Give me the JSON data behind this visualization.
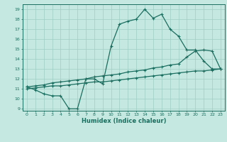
{
  "title": "",
  "xlabel": "Humidex (Indice chaleur)",
  "ylabel": "",
  "xlim": [
    -0.5,
    23.5
  ],
  "ylim": [
    8.8,
    19.5
  ],
  "yticks": [
    9,
    10,
    11,
    12,
    13,
    14,
    15,
    16,
    17,
    18,
    19
  ],
  "xticks": [
    0,
    1,
    2,
    3,
    4,
    5,
    6,
    7,
    8,
    9,
    10,
    11,
    12,
    13,
    14,
    15,
    16,
    17,
    18,
    19,
    20,
    21,
    22,
    23
  ],
  "bg_color": "#c5e8e0",
  "grid_color": "#9ecec5",
  "line_color": "#1a6e60",
  "line_width": 0.9,
  "marker": "+",
  "marker_size": 3.5,
  "hours": [
    0,
    1,
    2,
    3,
    4,
    5,
    6,
    7,
    8,
    9,
    10,
    11,
    12,
    13,
    14,
    15,
    16,
    17,
    18,
    19,
    20,
    21,
    22,
    23
  ],
  "main_line": [
    11.2,
    10.9,
    10.5,
    10.3,
    10.3,
    9.0,
    9.0,
    12.0,
    12.0,
    11.5,
    15.3,
    17.5,
    17.8,
    18.0,
    19.0,
    18.1,
    18.5,
    17.0,
    16.3,
    14.9,
    14.9,
    13.8,
    13.0,
    13.0
  ],
  "low_line": [
    11.0,
    11.1,
    11.2,
    11.3,
    11.3,
    11.4,
    11.5,
    11.6,
    11.7,
    11.7,
    11.8,
    11.9,
    12.0,
    12.1,
    12.2,
    12.3,
    12.4,
    12.5,
    12.6,
    12.7,
    12.8,
    12.8,
    12.9,
    13.0
  ],
  "high_line": [
    11.2,
    11.3,
    11.4,
    11.6,
    11.7,
    11.8,
    11.9,
    12.0,
    12.2,
    12.3,
    12.4,
    12.5,
    12.7,
    12.8,
    12.9,
    13.1,
    13.2,
    13.4,
    13.5,
    14.2,
    14.8,
    14.9,
    14.8,
    13.0
  ]
}
